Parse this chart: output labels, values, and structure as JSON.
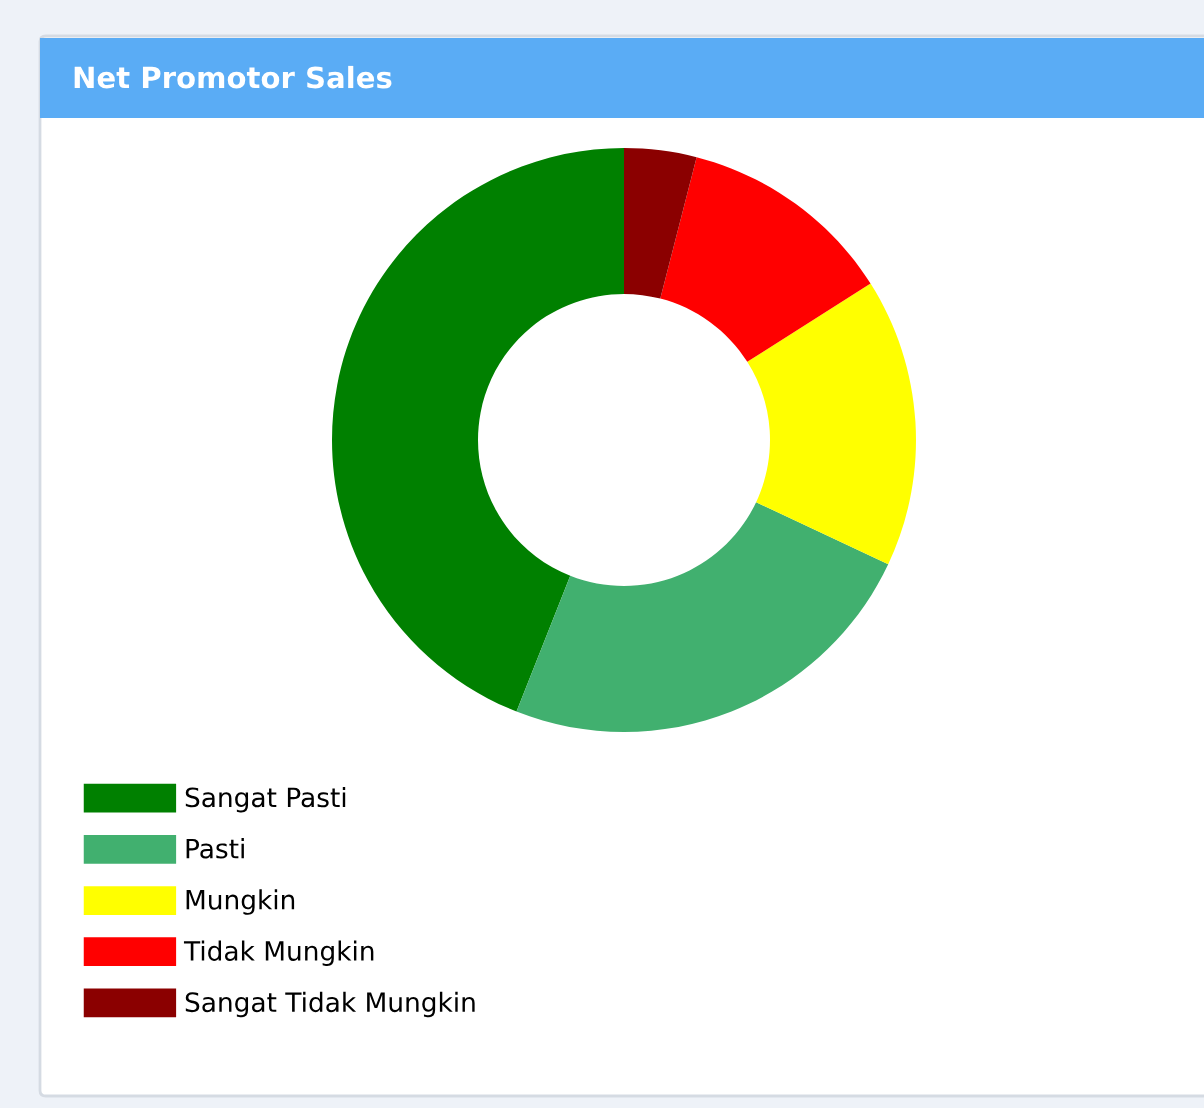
{
  "chart_data": {
    "type": "donut",
    "title": "Net Promotor Sales",
    "categories": [
      "Sangat Pasti",
      "Pasti",
      "Mungkin",
      "Tidak Mungkin",
      "Sangat Tidak Mungkin"
    ],
    "values": [
      44,
      24,
      16,
      12,
      4
    ],
    "colors": [
      "#008000",
      "#41b06f",
      "#ffff00",
      "#ff0000",
      "#8b0000"
    ],
    "legend": "bottom left"
  }
}
